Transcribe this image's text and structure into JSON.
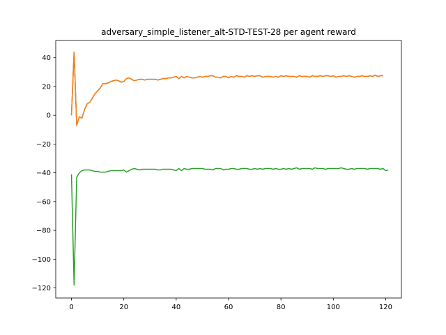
{
  "chart_data": {
    "type": "line",
    "title": "adversary_simple_listener_alt-STD-TEST-28 per agent reward",
    "xlabel": "",
    "ylabel": "",
    "xlim": [
      -6,
      126
    ],
    "ylim": [
      -127,
      52
    ],
    "grid": false,
    "legend": "none",
    "x_ticks": [
      0,
      20,
      40,
      60,
      80,
      100,
      120
    ],
    "y_ticks": [
      40,
      20,
      0,
      -20,
      -40,
      -60,
      -80,
      -100,
      -120
    ],
    "x_tick_labels": [
      "0",
      "20",
      "40",
      "60",
      "80",
      "100",
      "120"
    ],
    "y_tick_labels": [
      "40",
      "20",
      "0",
      "−20",
      "−40",
      "−60",
      "−80",
      "−100",
      "−120"
    ],
    "series": [
      {
        "color": "#1f77b4",
        "values": [
          0,
          44,
          -7,
          -1,
          -2,
          4,
          8,
          9,
          12,
          15,
          17,
          19,
          22,
          22,
          22.5,
          23.5,
          24,
          24.5,
          24,
          23,
          23.5,
          25.5,
          26,
          25,
          24,
          24.5,
          25,
          25,
          24.5,
          25,
          25,
          25,
          25,
          24.5,
          25,
          25.5,
          25.5,
          26,
          26,
          26.5,
          27,
          25.5,
          27,
          26,
          27,
          26.5,
          26,
          26,
          26.5,
          27,
          26.5,
          27,
          27,
          27.5,
          27.5,
          26.5,
          26.5,
          26,
          27,
          27,
          26,
          27,
          26.5,
          27.5,
          27,
          27,
          26.5,
          27.5,
          27,
          27.5,
          27,
          27.5,
          27.5,
          26.5,
          27,
          27,
          27,
          26.5,
          27,
          26.5,
          27.5,
          27,
          27.5,
          27,
          27,
          27,
          26.5,
          27.5,
          27,
          27,
          27,
          26.5,
          27.5,
          27,
          27,
          27.5,
          27,
          27.5,
          27.5,
          27,
          27.5,
          26.5,
          27,
          27,
          27.5,
          27,
          27.5,
          27,
          26.5,
          27,
          27,
          27.5,
          27,
          27,
          27.5,
          27,
          28,
          27,
          27.5,
          27.5
        ]
      },
      {
        "color": "#ff7f0e",
        "values": [
          0,
          44,
          -7,
          -1,
          -2,
          4,
          8,
          9,
          12,
          15,
          17,
          19,
          22,
          22,
          22.5,
          23.5,
          24,
          24.5,
          24,
          23,
          23.5,
          25.5,
          26,
          25,
          24,
          24.5,
          25,
          25,
          24.5,
          25,
          25,
          25,
          25,
          24.5,
          25,
          25.5,
          25.5,
          26,
          26,
          26.5,
          27,
          25.5,
          27,
          26,
          27,
          26.5,
          26,
          26,
          26.5,
          27,
          26.5,
          27,
          27,
          27.5,
          27.5,
          26.5,
          26.5,
          26,
          27,
          27,
          26,
          27,
          26.5,
          27.5,
          27,
          27,
          26.5,
          27.5,
          27,
          27.5,
          27,
          27.5,
          27.5,
          26.5,
          27,
          27,
          27,
          26.5,
          27,
          26.5,
          27.5,
          27,
          27.5,
          27,
          27,
          27,
          26.5,
          27.5,
          27,
          27,
          27,
          26.5,
          27.5,
          27,
          27,
          27.5,
          27,
          27.5,
          27.5,
          27,
          27.5,
          26.5,
          27,
          27,
          27.5,
          27,
          27.5,
          27,
          26.5,
          27,
          27,
          27.5,
          27,
          27,
          27.5,
          27,
          28,
          27,
          27.5,
          27.5
        ]
      },
      {
        "color": "#2ca02c",
        "values": [
          -41,
          -118,
          -43,
          -40,
          -38.5,
          -38,
          -38,
          -38,
          -38.5,
          -39,
          -39,
          -39.5,
          -39.5,
          -39.5,
          -39,
          -38.5,
          -38.5,
          -38.5,
          -38.5,
          -38.5,
          -38,
          -39.5,
          -38.5,
          -37.5,
          -37,
          -37.5,
          -38,
          -37.5,
          -37.5,
          -37.5,
          -37.5,
          -37.5,
          -37.5,
          -38,
          -38,
          -37.5,
          -37.5,
          -37.5,
          -37.5,
          -38,
          -38.5,
          -37,
          -38.5,
          -37,
          -37.5,
          -37.5,
          -37,
          -37,
          -37,
          -37,
          -37,
          -37.5,
          -37.5,
          -37.5,
          -38,
          -37,
          -37,
          -37,
          -38,
          -37.5,
          -37.5,
          -37,
          -37,
          -37.5,
          -37.5,
          -37,
          -37,
          -37,
          -37.5,
          -37.5,
          -37,
          -37.5,
          -37,
          -37.5,
          -37,
          -37,
          -37,
          -37.5,
          -37,
          -37.5,
          -37.5,
          -37,
          -37.5,
          -37,
          -37.5,
          -37,
          -36.5,
          -37.5,
          -37,
          -37,
          -37,
          -37,
          -37.5,
          -36.5,
          -37,
          -37,
          -37,
          -37.5,
          -37,
          -37,
          -37,
          -37,
          -37,
          -36.5,
          -37,
          -37.5,
          -37.5,
          -37,
          -37.5,
          -37,
          -37,
          -37,
          -37,
          -37.5,
          -37,
          -37,
          -37,
          -37,
          -37.5,
          -37,
          -38.5,
          -38
        ]
      }
    ]
  }
}
